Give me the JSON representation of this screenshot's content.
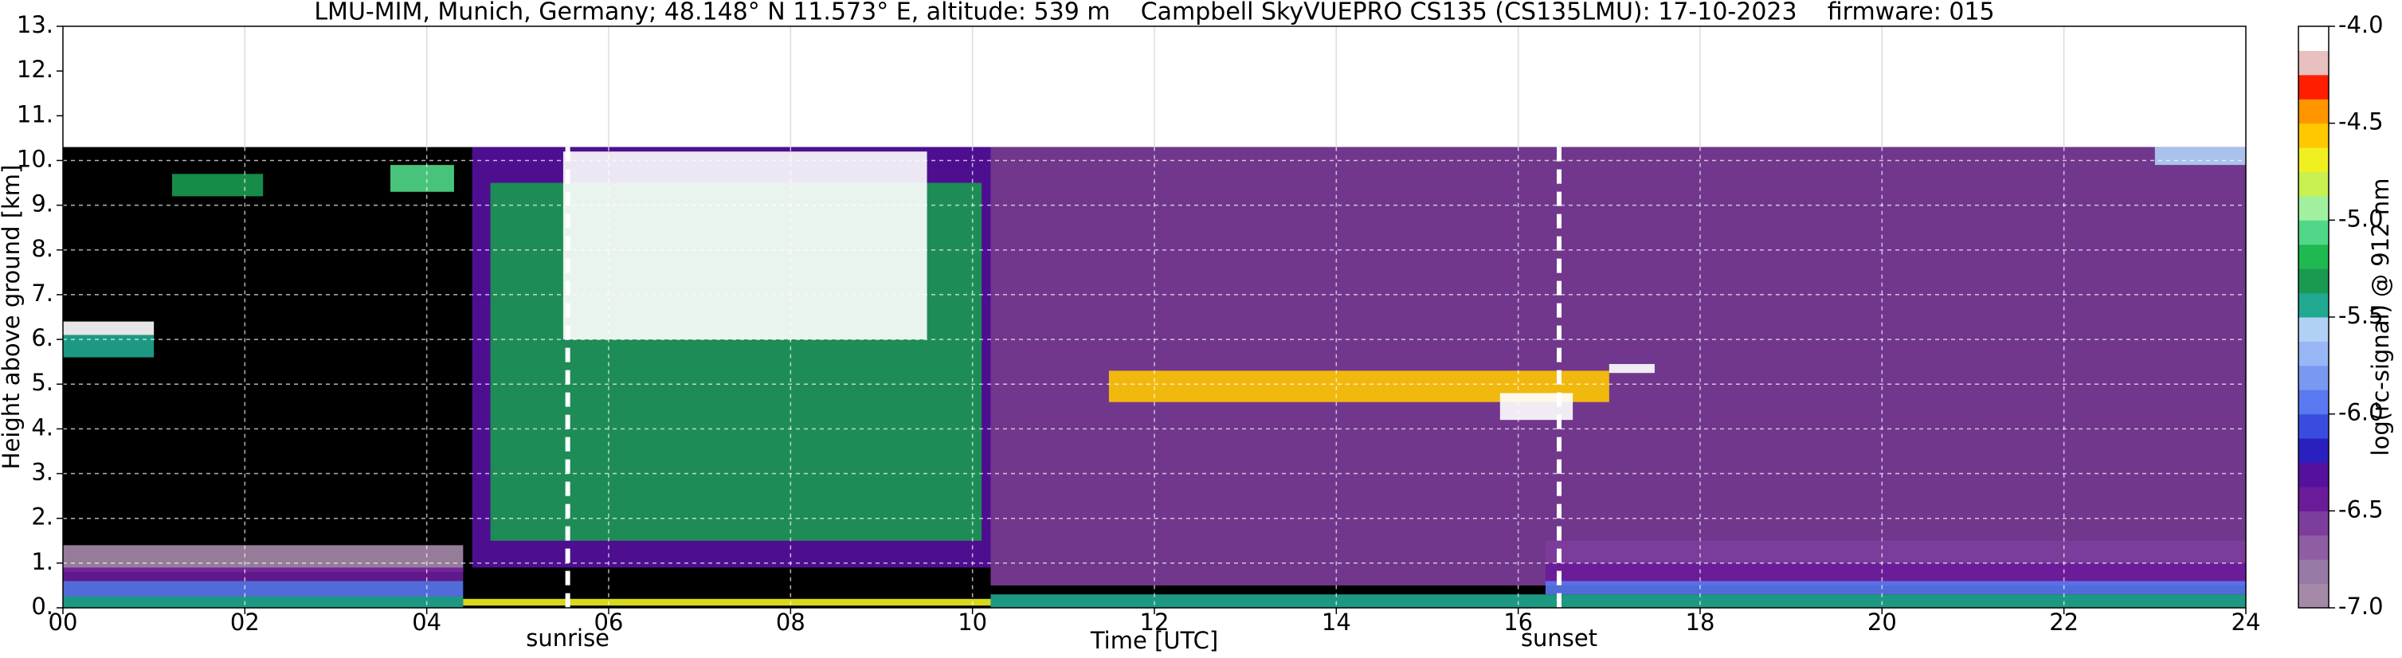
{
  "chart_data": {
    "type": "heatmap",
    "title": "LMU-MIM, Munich, Germany; 48.148° N 11.573° E, altitude: 539 m    Campbell SkyVUEPRO CS135 (CS135LMU): 17-10-2023    firmware: 015",
    "x_label": "Time [UTC]",
    "y_label": "Height above ground [km]",
    "xlim": [
      0,
      24
    ],
    "xticks": [
      {
        "value": 0,
        "label": "00"
      },
      {
        "value": 2,
        "label": "02"
      },
      {
        "value": 4,
        "label": "04"
      },
      {
        "value": 6,
        "label": "06"
      },
      {
        "value": 8,
        "label": "08"
      },
      {
        "value": 10,
        "label": "10"
      },
      {
        "value": 12,
        "label": "12"
      },
      {
        "value": 14,
        "label": "14"
      },
      {
        "value": 16,
        "label": "16"
      },
      {
        "value": 18,
        "label": "18"
      },
      {
        "value": 20,
        "label": "20"
      },
      {
        "value": 22,
        "label": "22"
      },
      {
        "value": 24,
        "label": "24"
      }
    ],
    "ylim": [
      0,
      13
    ],
    "yticks": [
      {
        "value": 0,
        "label": "0."
      },
      {
        "value": 1,
        "label": "1."
      },
      {
        "value": 2,
        "label": "2."
      },
      {
        "value": 3,
        "label": "3."
      },
      {
        "value": 4,
        "label": "4."
      },
      {
        "value": 5,
        "label": "5."
      },
      {
        "value": 6,
        "label": "6."
      },
      {
        "value": 7,
        "label": "7."
      },
      {
        "value": 8,
        "label": "8."
      },
      {
        "value": 9,
        "label": "9."
      },
      {
        "value": 10,
        "label": "10."
      },
      {
        "value": 11,
        "label": "11."
      },
      {
        "value": 12,
        "label": "12."
      },
      {
        "value": 13,
        "label": "13."
      }
    ],
    "grid": true,
    "background": "#000000",
    "data_top": 10.3,
    "annotations": [
      {
        "text": "sunrise",
        "x": 5.55
      },
      {
        "text": "sunset",
        "x": 16.45
      }
    ],
    "colorbar": {
      "label": "log(rc-signal) @ 912 nm",
      "lim": [
        -7,
        -4
      ],
      "ticks": [
        -4.0,
        -4.5,
        -5.0,
        -5.5,
        -6.0,
        -6.5,
        -7.0
      ],
      "tick_labels": [
        "-4.0",
        "-4.5",
        "-5.0",
        "-5.5",
        "-6.0",
        "-6.5",
        "-7.0"
      ],
      "colors": [
        "#a58aa8",
        "#977aa5",
        "#8e5da3",
        "#7d3d9c",
        "#6a1b9a",
        "#55119e",
        "#2a20c0",
        "#3a4ce0",
        "#5a78ef",
        "#7898f2",
        "#98b6f5",
        "#b0d0f5",
        "#20a890",
        "#1a9a50",
        "#20b850",
        "#50d888",
        "#a0f0a0",
        "#c8f050",
        "#f0f020",
        "#ffc800",
        "#ff9600",
        "#ff1e00",
        "#e8c0c0",
        "#ffffff"
      ]
    },
    "features": [
      {
        "t": [
          4.5,
          10.2
        ],
        "h": [
          0.9,
          10.3
        ],
        "value": -6.3
      },
      {
        "t": [
          10.2,
          24
        ],
        "h": [
          0.5,
          10.3
        ],
        "value": -6.6
      },
      {
        "t": [
          4.7,
          10.1
        ],
        "h": [
          1.5,
          9.5
        ],
        "value": -5.3
      },
      {
        "t": [
          5.5,
          9.5
        ],
        "h": [
          6.0,
          10.2
        ],
        "value": -4.1
      },
      {
        "t": [
          0,
          4.4
        ],
        "h": [
          0.8,
          1.4
        ],
        "value": -6.95
      },
      {
        "t": [
          0,
          4.4
        ],
        "h": [
          0.6,
          0.9
        ],
        "value": -6.45
      },
      {
        "t": [
          0,
          4.4
        ],
        "h": [
          0.25,
          0.6
        ],
        "value": -5.9
      },
      {
        "t": [
          0,
          4.4
        ],
        "h": [
          0.0,
          0.25
        ],
        "value": -5.4
      },
      {
        "t": [
          4.4,
          10.2
        ],
        "h": [
          0.05,
          0.2
        ],
        "value": -4.7
      },
      {
        "t": [
          10.2,
          24
        ],
        "h": [
          0.0,
          0.3
        ],
        "value": -5.4
      },
      {
        "t": [
          16.3,
          24
        ],
        "h": [
          0.3,
          0.6
        ],
        "value": -6.0
      },
      {
        "t": [
          16.3,
          24
        ],
        "h": [
          0.6,
          1.0
        ],
        "value": -6.5
      },
      {
        "t": [
          16.3,
          24
        ],
        "h": [
          1.0,
          1.5
        ],
        "value": -6.6
      },
      {
        "t": [
          0,
          1.0
        ],
        "h": [
          5.6,
          6.1
        ],
        "value": -5.5
      },
      {
        "t": [
          0,
          1.0
        ],
        "h": [
          6.1,
          6.4
        ],
        "value": -4.05
      },
      {
        "t": [
          1.2,
          2.2
        ],
        "h": [
          9.2,
          9.7
        ],
        "value": -5.3
      },
      {
        "t": [
          3.6,
          4.3
        ],
        "h": [
          9.3,
          9.9
        ],
        "value": -5.1
      },
      {
        "t": [
          11.5,
          17.0
        ],
        "h": [
          4.6,
          5.3
        ],
        "value": -4.6
      },
      {
        "t": [
          15.8,
          16.6
        ],
        "h": [
          4.2,
          4.8
        ],
        "value": -4.05
      },
      {
        "t": [
          17.0,
          17.5
        ],
        "h": [
          5.25,
          5.45
        ],
        "value": -4.05
      },
      {
        "t": [
          23.0,
          24
        ],
        "h": [
          9.9,
          10.3
        ],
        "value": -5.6
      }
    ]
  }
}
